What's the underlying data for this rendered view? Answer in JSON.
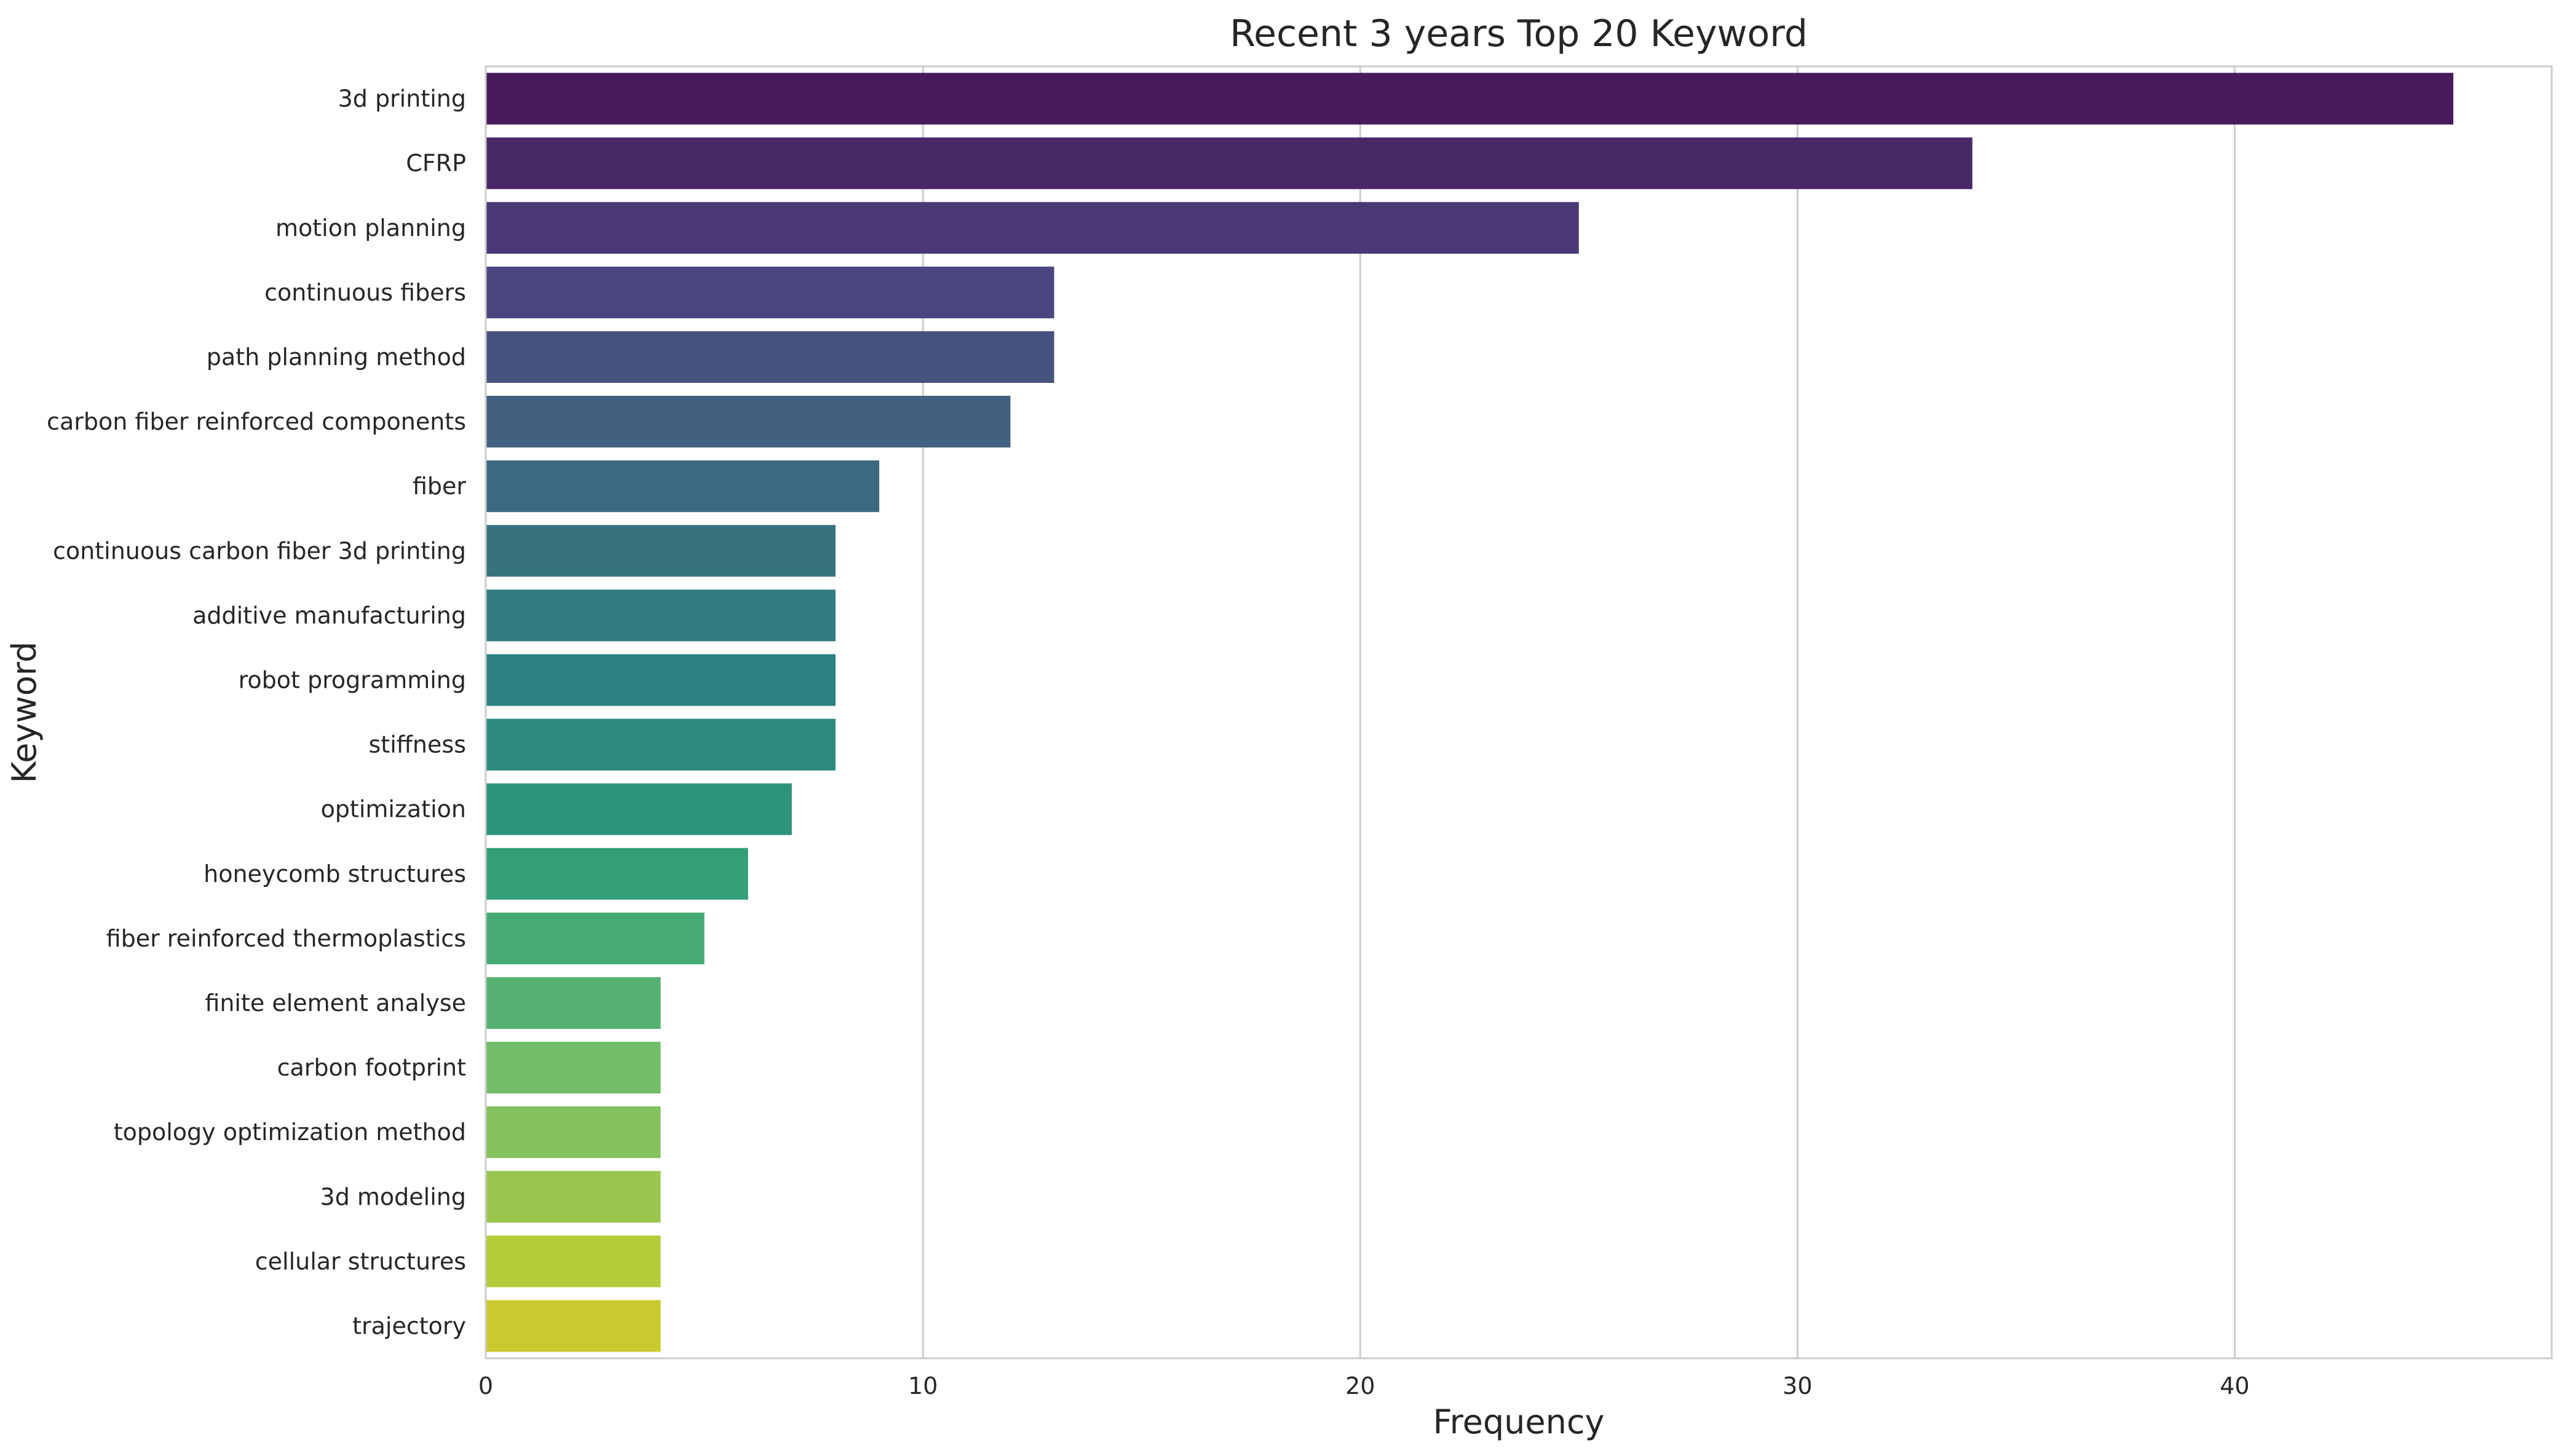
{
  "chart_data": {
    "type": "bar",
    "orientation": "horizontal",
    "title": "Recent 3 years Top 20 Keyword",
    "xlabel": "Frequency",
    "ylabel": "Keyword",
    "xlim": [
      0,
      47.25
    ],
    "xticks": [
      0,
      10,
      20,
      30,
      40
    ],
    "grid": true,
    "categories": [
      "3d printing",
      "CFRP",
      "motion planning",
      "continuous fibers",
      "path planning method",
      "carbon fiber reinforced components",
      "fiber",
      "continuous carbon fiber 3d printing",
      "additive manufacturing",
      "robot programming",
      "stiffness",
      "optimization",
      "honeycomb structures",
      "fiber reinforced thermoplastics",
      "finite element analyse",
      "carbon footprint",
      "topology optimization method",
      "3d modeling",
      "cellular structures",
      "trajectory"
    ],
    "values": [
      45,
      34,
      25,
      13,
      13,
      12,
      9,
      8,
      8,
      8,
      8,
      7,
      6,
      5,
      4,
      4,
      4,
      4,
      4,
      4
    ],
    "colors": [
      "#471b5c",
      "#492868",
      "#4b3877",
      "#4b4580",
      "#47537f",
      "#42607f",
      "#3c6880",
      "#36737f",
      "#317b80",
      "#2d8180",
      "#2c8a7e",
      "#2e937d",
      "#33a078",
      "#47aa74",
      "#55b171",
      "#72bd68",
      "#84c25d",
      "#9ac64e",
      "#b5ca37",
      "#cac92e"
    ]
  }
}
